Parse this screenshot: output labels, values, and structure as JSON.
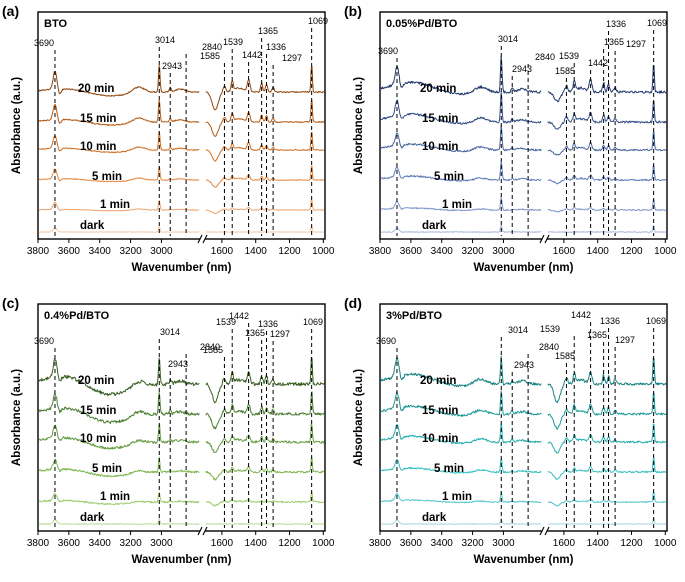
{
  "chart_data": [
    {
      "type": "line",
      "panel": "(a)",
      "sample": "BTO",
      "xlabel": "Wavenumber (nm)",
      "ylabel": "Absorbance (a.u.)",
      "x_tick_labels": [
        "3800",
        "3600",
        "3400",
        "3200",
        "3000",
        "1600",
        "1400",
        "1200",
        "1000"
      ],
      "x_segments": [
        [
          3800,
          2750
        ],
        [
          1700,
          990
        ]
      ],
      "series": [
        "dark",
        "1 min",
        "5 min",
        "10 min",
        "15 min",
        "20 min"
      ],
      "colors": [
        "#f3c9a6",
        "#eea36c",
        "#e4873e",
        "#cf6c1d",
        "#b55810",
        "#8f440a"
      ],
      "peaks": [
        {
          "label": "3690",
          "x": 3690
        },
        {
          "label": "3014",
          "x": 3014
        },
        {
          "label": "2943",
          "x": 2943
        },
        {
          "label": "2840",
          "x": 2840
        },
        {
          "label": "1585",
          "x": 1585
        },
        {
          "label": "1539",
          "x": 1539
        },
        {
          "label": "1442",
          "x": 1442
        },
        {
          "label": "1365",
          "x": 1365
        },
        {
          "label": "1336",
          "x": 1336
        },
        {
          "label": "1297",
          "x": 1297
        },
        {
          "label": "1069",
          "x": 1069
        }
      ]
    },
    {
      "type": "line",
      "panel": "(b)",
      "sample": "0.05%Pd/BTO",
      "xlabel": "Wavenumber (nm)",
      "ylabel": "Absorbance (a.u.)",
      "x_tick_labels": [
        "3800",
        "3600",
        "3400",
        "3200",
        "3000",
        "1600",
        "1400",
        "1200",
        "1000"
      ],
      "x_segments": [
        [
          3800,
          2750
        ],
        [
          1700,
          990
        ]
      ],
      "series": [
        "dark",
        "1 min",
        "5 min",
        "10 min",
        "15 min",
        "20 min"
      ],
      "colors": [
        "#a9b9dd",
        "#7f97cb",
        "#5f7cba",
        "#46649f",
        "#334f86",
        "#22396c"
      ],
      "peaks": [
        {
          "label": "3690",
          "x": 3690
        },
        {
          "label": "3014",
          "x": 3014
        },
        {
          "label": "2943",
          "x": 2943
        },
        {
          "label": "2840",
          "x": 2840
        },
        {
          "label": "1585",
          "x": 1585
        },
        {
          "label": "1539",
          "x": 1539
        },
        {
          "label": "1442",
          "x": 1442
        },
        {
          "label": "1365",
          "x": 1365
        },
        {
          "label": "1336",
          "x": 1336
        },
        {
          "label": "1297",
          "x": 1297
        },
        {
          "label": "1069",
          "x": 1069
        }
      ]
    },
    {
      "type": "line",
      "panel": "(c)",
      "sample": "0.4%Pd/BTO",
      "xlabel": "Wavenumber (nm)",
      "ylabel": "Absorbance (a.u.)",
      "x_tick_labels": [
        "3800",
        "3600",
        "3400",
        "3200",
        "3000",
        "1600",
        "1400",
        "1200",
        "1000"
      ],
      "x_segments": [
        [
          3800,
          2750
        ],
        [
          1700,
          990
        ]
      ],
      "series": [
        "dark",
        "1 min",
        "5 min",
        "10 min",
        "15 min",
        "20 min"
      ],
      "colors": [
        "#bfdc9c",
        "#9ccb6d",
        "#7db653",
        "#629c3f",
        "#4d7f33",
        "#375f22"
      ],
      "peaks": [
        {
          "label": "3690",
          "x": 3690
        },
        {
          "label": "3014",
          "x": 3014
        },
        {
          "label": "2943",
          "x": 2943
        },
        {
          "label": "2840",
          "x": 2840
        },
        {
          "label": "1585",
          "x": 1585
        },
        {
          "label": "1539",
          "x": 1539
        },
        {
          "label": "1442",
          "x": 1442
        },
        {
          "label": "1365",
          "x": 1365
        },
        {
          "label": "1336",
          "x": 1336
        },
        {
          "label": "1297",
          "x": 1297
        },
        {
          "label": "1069",
          "x": 1069
        }
      ]
    },
    {
      "type": "line",
      "panel": "(d)",
      "sample": "3%Pd/BTO",
      "xlabel": "Wavenumber (nm)",
      "ylabel": "Absorbance (a.u.)",
      "x_tick_labels": [
        "3800",
        "3600",
        "3400",
        "3200",
        "3000",
        "1600",
        "1400",
        "1200",
        "1000"
      ],
      "x_segments": [
        [
          3800,
          2750
        ],
        [
          1700,
          990
        ]
      ],
      "series": [
        "dark",
        "1 min",
        "5 min",
        "10 min",
        "15 min",
        "20 min"
      ],
      "colors": [
        "#a8d7dd",
        "#55c8cc",
        "#33c1c2",
        "#25aeae",
        "#1e9999",
        "#178282"
      ],
      "peaks": [
        {
          "label": "3690",
          "x": 3690
        },
        {
          "label": "3014",
          "x": 3014
        },
        {
          "label": "2943",
          "x": 2943
        },
        {
          "label": "2840",
          "x": 2840
        },
        {
          "label": "1585",
          "x": 1585
        },
        {
          "label": "1539",
          "x": 1539
        },
        {
          "label": "1442",
          "x": 1442
        },
        {
          "label": "1365",
          "x": 1365
        },
        {
          "label": "1336",
          "x": 1336
        },
        {
          "label": "1297",
          "x": 1297
        },
        {
          "label": "1069",
          "x": 1069
        }
      ]
    }
  ]
}
